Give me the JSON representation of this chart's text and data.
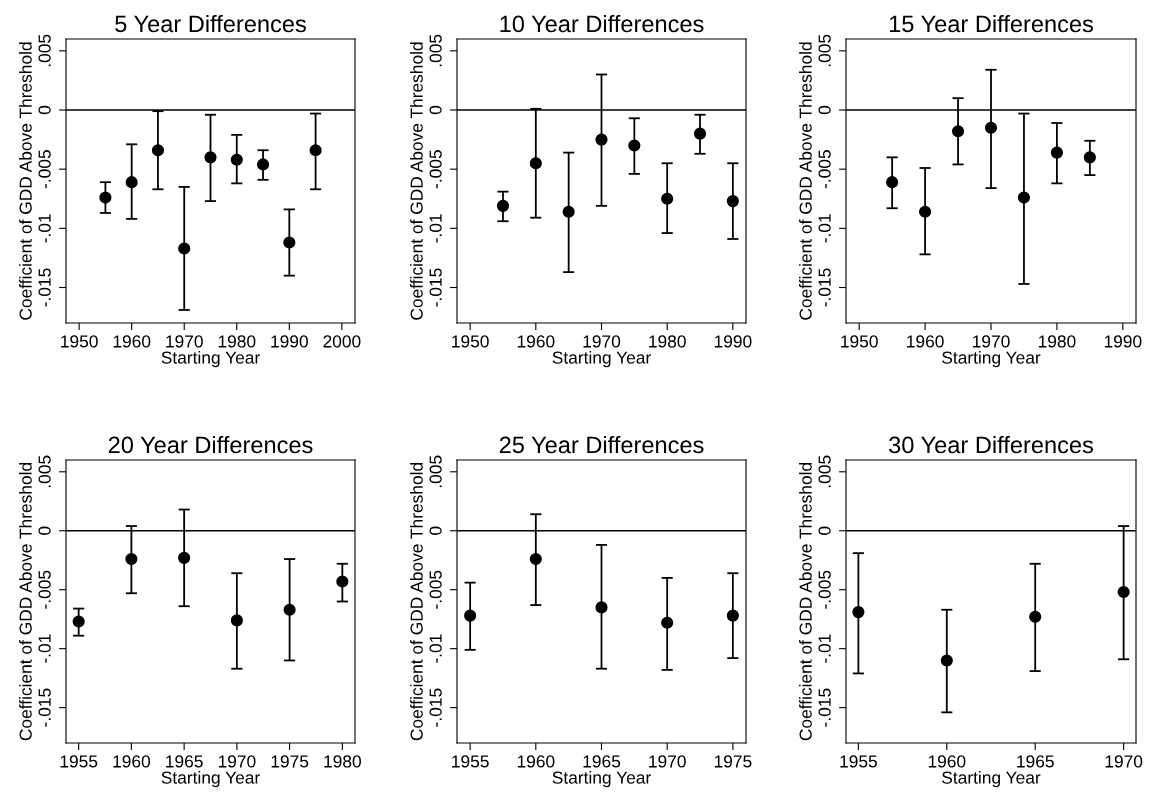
{
  "chart_data": [
    {
      "type": "scatter",
      "title": "5 Year Differences",
      "xlabel": "Starting Year",
      "ylabel": "Coefficient of GDD Above Threshold",
      "marker": "circle",
      "grid": false,
      "color": "#000000",
      "x": [
        1955,
        1960,
        1965,
        1970,
        1975,
        1980,
        1985,
        1990,
        1995
      ],
      "values": [
        -0.0074,
        -0.0061,
        -0.0034,
        -0.0117,
        -0.004,
        -0.0042,
        -0.0046,
        -0.0112,
        -0.0034
      ],
      "errors": [
        [
          -0.0087,
          -0.0061
        ],
        [
          -0.0092,
          -0.0029
        ],
        [
          -0.0067,
          -0.0001
        ],
        [
          -0.0169,
          -0.0065
        ],
        [
          -0.0077,
          -0.0004
        ],
        [
          -0.0062,
          -0.0021
        ],
        [
          -0.0059,
          -0.0034
        ],
        [
          -0.014,
          -0.0084
        ],
        [
          -0.0067,
          -0.0003
        ]
      ],
      "xlim": [
        1947.5,
        2002.5
      ],
      "xticks": [
        1950,
        1960,
        1970,
        1980,
        1990,
        2000
      ],
      "ylim": [
        -0.018,
        0.006
      ],
      "yticks": [
        {
          "value": -0.015,
          "label": "-.015"
        },
        {
          "value": -0.01,
          "label": "-.01"
        },
        {
          "value": -0.005,
          "label": "-.005"
        },
        {
          "value": 0,
          "label": "0"
        },
        {
          "value": 0.005,
          "label": ".005"
        }
      ],
      "ref_lines": [
        {
          "axis": "y",
          "value": 0,
          "color": "#000000",
          "line_style": "solid"
        }
      ]
    },
    {
      "type": "scatter",
      "title": "10 Year Differences",
      "xlabel": "Starting Year",
      "ylabel": "Coefficient of GDD Above Threshold",
      "marker": "circle",
      "grid": false,
      "color": "#000000",
      "x": [
        1955,
        1960,
        1965,
        1970,
        1975,
        1980,
        1985,
        1990
      ],
      "values": [
        -0.0081,
        -0.0045,
        -0.0086,
        -0.0025,
        -0.003,
        -0.0075,
        -0.002,
        -0.0077
      ],
      "errors": [
        [
          -0.0094,
          -0.0069
        ],
        [
          -0.0091,
          0.0001
        ],
        [
          -0.0137,
          -0.0036
        ],
        [
          -0.0081,
          0.003
        ],
        [
          -0.0054,
          -0.0007
        ],
        [
          -0.0104,
          -0.0045
        ],
        [
          -0.0037,
          -0.0004
        ],
        [
          -0.0109,
          -0.0045
        ]
      ],
      "xlim": [
        1948,
        1992
      ],
      "xticks": [
        1950,
        1960,
        1970,
        1980,
        1990
      ],
      "ylim": [
        -0.018,
        0.006
      ],
      "yticks": [
        {
          "value": -0.015,
          "label": "-.015"
        },
        {
          "value": -0.01,
          "label": "-.01"
        },
        {
          "value": -0.005,
          "label": "-.005"
        },
        {
          "value": 0,
          "label": "0"
        },
        {
          "value": 0.005,
          "label": ".005"
        }
      ],
      "ref_lines": [
        {
          "axis": "y",
          "value": 0,
          "color": "#000000",
          "line_style": "solid"
        }
      ]
    },
    {
      "type": "scatter",
      "title": "15 Year Differences",
      "xlabel": "Starting Year",
      "ylabel": "Coefficient of GDD Above Threshold",
      "marker": "circle",
      "grid": false,
      "color": "#000000",
      "x": [
        1955,
        1960,
        1965,
        1970,
        1975,
        1980,
        1985
      ],
      "values": [
        -0.0061,
        -0.0086,
        -0.0018,
        -0.0015,
        -0.0074,
        -0.0036,
        -0.004
      ],
      "errors": [
        [
          -0.0083,
          -0.004
        ],
        [
          -0.0122,
          -0.0049
        ],
        [
          -0.0046,
          0.001
        ],
        [
          -0.0066,
          0.0034
        ],
        [
          -0.0147,
          -0.0003
        ],
        [
          -0.0062,
          -0.0011
        ],
        [
          -0.0055,
          -0.0026
        ]
      ],
      "xlim": [
        1948,
        1992
      ],
      "xticks": [
        1950,
        1960,
        1970,
        1980,
        1990
      ],
      "ylim": [
        -0.018,
        0.006
      ],
      "yticks": [
        {
          "value": -0.015,
          "label": "-.015"
        },
        {
          "value": -0.01,
          "label": "-.01"
        },
        {
          "value": -0.005,
          "label": "-.005"
        },
        {
          "value": 0,
          "label": "0"
        },
        {
          "value": 0.005,
          "label": ".005"
        }
      ],
      "ref_lines": [
        {
          "axis": "y",
          "value": 0,
          "color": "#000000",
          "line_style": "solid"
        }
      ]
    },
    {
      "type": "scatter",
      "title": "20 Year Differences",
      "xlabel": "Starting Year",
      "ylabel": "Coefficient of GDD Above Threshold",
      "marker": "circle",
      "grid": false,
      "color": "#000000",
      "x": [
        1955,
        1960,
        1965,
        1970,
        1975,
        1980
      ],
      "values": [
        -0.0077,
        -0.0024,
        -0.0023,
        -0.0076,
        -0.0067,
        -0.0043
      ],
      "errors": [
        [
          -0.0089,
          -0.0066
        ],
        [
          -0.0053,
          0.0004
        ],
        [
          -0.0064,
          0.0018
        ],
        [
          -0.0117,
          -0.0036
        ],
        [
          -0.011,
          -0.0024
        ],
        [
          -0.006,
          -0.0028
        ]
      ],
      "xlim": [
        1953.8,
        1981.2
      ],
      "xticks": [
        1955,
        1960,
        1965,
        1970,
        1975,
        1980
      ],
      "ylim": [
        -0.018,
        0.006
      ],
      "yticks": [
        {
          "value": -0.015,
          "label": "-.015"
        },
        {
          "value": -0.01,
          "label": "-.01"
        },
        {
          "value": -0.005,
          "label": "-.005"
        },
        {
          "value": 0,
          "label": "0"
        },
        {
          "value": 0.005,
          "label": ".005"
        }
      ],
      "ref_lines": [
        {
          "axis": "y",
          "value": 0,
          "color": "#000000",
          "line_style": "solid"
        }
      ]
    },
    {
      "type": "scatter",
      "title": "25 Year Differences",
      "xlabel": "Starting Year",
      "ylabel": "Coefficient of GDD Above Threshold",
      "marker": "circle",
      "grid": false,
      "color": "#000000",
      "x": [
        1955,
        1960,
        1965,
        1970,
        1975
      ],
      "values": [
        -0.0072,
        -0.0024,
        -0.0065,
        -0.0078,
        -0.0072
      ],
      "errors": [
        [
          -0.0101,
          -0.0044
        ],
        [
          -0.0063,
          0.0014
        ],
        [
          -0.0117,
          -0.0012
        ],
        [
          -0.0118,
          -0.004
        ],
        [
          -0.0108,
          -0.0036
        ]
      ],
      "xlim": [
        1954,
        1976
      ],
      "xticks": [
        1955,
        1960,
        1965,
        1970,
        1975
      ],
      "ylim": [
        -0.018,
        0.006
      ],
      "yticks": [
        {
          "value": -0.015,
          "label": "-.015"
        },
        {
          "value": -0.01,
          "label": "-.01"
        },
        {
          "value": -0.005,
          "label": "-.005"
        },
        {
          "value": 0,
          "label": "0"
        },
        {
          "value": 0.005,
          "label": ".005"
        }
      ],
      "ref_lines": [
        {
          "axis": "y",
          "value": 0,
          "color": "#000000",
          "line_style": "solid"
        }
      ]
    },
    {
      "type": "scatter",
      "title": "30 Year Differences",
      "xlabel": "Starting Year",
      "ylabel": "Coefficient of GDD Above Threshold",
      "marker": "circle",
      "grid": false,
      "color": "#000000",
      "x": [
        1955,
        1960,
        1965,
        1970
      ],
      "values": [
        -0.0069,
        -0.011,
        -0.0073,
        -0.0052
      ],
      "errors": [
        [
          -0.0121,
          -0.0019
        ],
        [
          -0.0154,
          -0.0067
        ],
        [
          -0.0119,
          -0.0028
        ],
        [
          -0.0109,
          0.0004
        ]
      ],
      "xlim": [
        1954.3,
        1970.7
      ],
      "xticks": [
        1955,
        1960,
        1965,
        1970
      ],
      "ylim": [
        -0.018,
        0.006
      ],
      "yticks": [
        {
          "value": -0.015,
          "label": "-.015"
        },
        {
          "value": -0.01,
          "label": "-.01"
        },
        {
          "value": -0.005,
          "label": "-.005"
        },
        {
          "value": 0,
          "label": "0"
        },
        {
          "value": 0.005,
          "label": ".005"
        }
      ],
      "ref_lines": [
        {
          "axis": "y",
          "value": 0,
          "color": "#000000",
          "line_style": "solid"
        }
      ]
    }
  ]
}
